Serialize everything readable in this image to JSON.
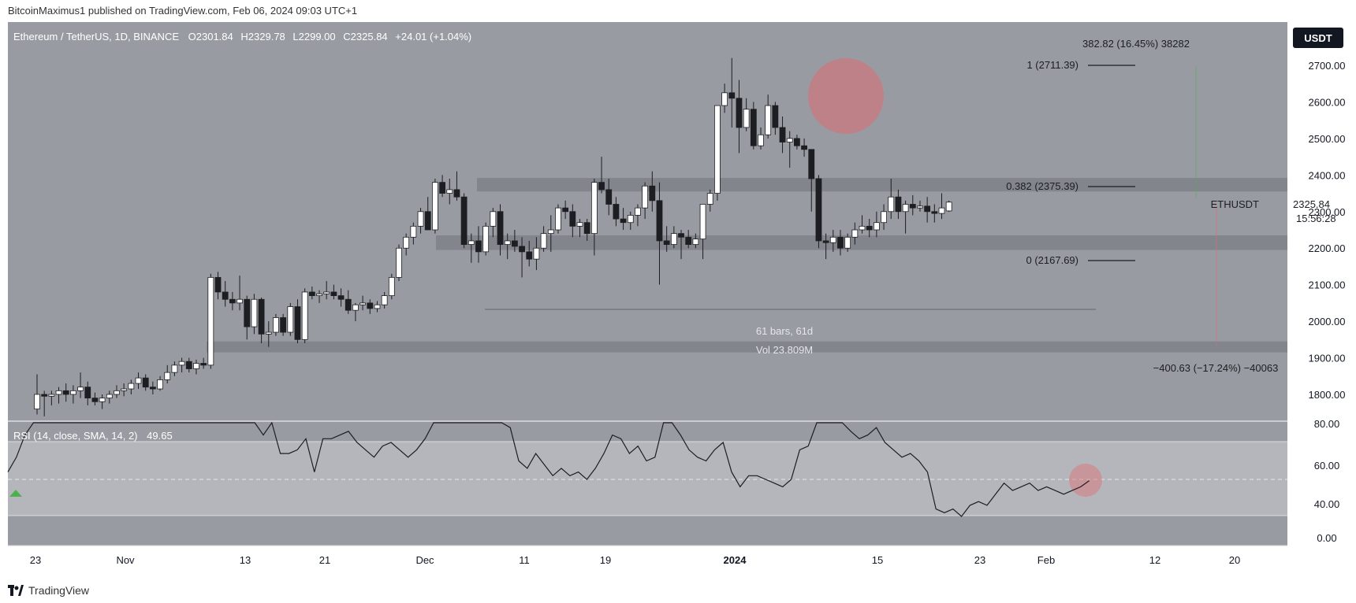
{
  "header": {
    "published": "BitcoinMaximus1 published on TradingView.com, Feb 06, 2024 09:03 UTC+1"
  },
  "footer": {
    "brand": "TradingView"
  },
  "symbol": {
    "title": "Ethereum / TetherUS, 1D, BINANCE",
    "o_label": "O",
    "o_value": "2301.84",
    "h_label": "H",
    "h_value": "2329.78",
    "l_label": "L",
    "l_value": "2299.00",
    "c_label": "C",
    "c_value": "2325.84",
    "change": "+24.01 (+1.04%)"
  },
  "price_axis": {
    "currency": "USDT",
    "tag_symbol": "ETHUSDT",
    "tag_price": "2325.84",
    "tag_countdown": "15:56:28"
  },
  "annotations": {
    "fib_1": "1 (2711.39)",
    "fib_0382": "0.382 (2375.39)",
    "fib_0": "0 (2167.69)",
    "measure_up": "382.82 (16.45%) 38282",
    "measure_down": "−400.63 (−17.24%) −40063",
    "bars_range": "61 bars, 61d",
    "vol_range": "Vol 23.809M"
  },
  "rsi": {
    "label": "RSI (14, close, SMA, 14, 2)",
    "value": "49.65"
  },
  "colors": {
    "pane_bg": "#989ba1",
    "rsi_band": "#b4b6bb",
    "zone": "#7b7e84",
    "candle_up": "#ffffff",
    "candle_down": "#1c1e22",
    "highlight": "#e06c75",
    "currency_badge": "#131722"
  },
  "chart_data": [
    {
      "type": "candlestick",
      "title": "Ethereum / TetherUS, 1D, BINANCE",
      "ylim": [
        1720,
        2820
      ],
      "y_ticks": [
        1800,
        1900,
        2000,
        2100,
        2200,
        2300,
        2400,
        2500,
        2600,
        2700
      ],
      "x_ticks": [
        "23",
        "Nov",
        "13",
        "21",
        "Dec",
        "11",
        "19",
        "2024",
        "15",
        "23",
        "Feb",
        "12",
        "20"
      ],
      "support_zones": [
        [
          2355,
          2392
        ],
        [
          2195,
          2235
        ],
        [
          1915,
          1945
        ]
      ],
      "fibonacci": [
        {
          "level": "1",
          "price": 2711.39
        },
        {
          "level": "0.382",
          "price": 2375.39
        },
        {
          "level": "0",
          "price": 2167.69
        }
      ],
      "series": [
        {
          "name": "ETHUSDT",
          "ohlc": [
            [
              1760,
              1855,
              1745,
              1800
            ],
            [
              1800,
              1810,
              1740,
              1795
            ],
            [
              1795,
              1810,
              1770,
              1800
            ],
            [
              1800,
              1820,
              1775,
              1810
            ],
            [
              1810,
              1830,
              1780,
              1800
            ],
            [
              1800,
              1825,
              1775,
              1810
            ],
            [
              1810,
              1860,
              1790,
              1820
            ],
            [
              1820,
              1835,
              1770,
              1790
            ],
            [
              1790,
              1805,
              1770,
              1780
            ],
            [
              1780,
              1800,
              1760,
              1790
            ],
            [
              1790,
              1810,
              1775,
              1800
            ],
            [
              1800,
              1825,
              1790,
              1810
            ],
            [
              1810,
              1830,
              1795,
              1815
            ],
            [
              1815,
              1840,
              1800,
              1830
            ],
            [
              1830,
              1860,
              1815,
              1845
            ],
            [
              1845,
              1855,
              1810,
              1820
            ],
            [
              1820,
              1835,
              1800,
              1815
            ],
            [
              1815,
              1850,
              1810,
              1840
            ],
            [
              1840,
              1880,
              1830,
              1860
            ],
            [
              1860,
              1890,
              1850,
              1880
            ],
            [
              1880,
              1900,
              1860,
              1890
            ],
            [
              1890,
              1900,
              1860,
              1870
            ],
            [
              1870,
              1895,
              1855,
              1885
            ],
            [
              1885,
              1900,
              1870,
              1880
            ],
            [
              1880,
              2130,
              1870,
              2120
            ],
            [
              2120,
              2135,
              2060,
              2080
            ],
            [
              2080,
              2110,
              2040,
              2060
            ],
            [
              2060,
              2080,
              2030,
              2050
            ],
            [
              2050,
              2125,
              2030,
              2060
            ],
            [
              2060,
              2070,
              1950,
              1985
            ],
            [
              1985,
              2075,
              1965,
              2060
            ],
            [
              2060,
              2065,
              1940,
              1965
            ],
            [
              1965,
              2000,
              1930,
              1970
            ],
            [
              1970,
              2020,
              1960,
              2010
            ],
            [
              2010,
              2020,
              1960,
              1970
            ],
            [
              1970,
              2050,
              1960,
              2040
            ],
            [
              2040,
              2060,
              1940,
              1950
            ],
            [
              1950,
              2090,
              1940,
              2080
            ],
            [
              2080,
              2095,
              2060,
              2070
            ],
            [
              2070,
              2085,
              2050,
              2075
            ],
            [
              2075,
              2110,
              2060,
              2080
            ],
            [
              2080,
              2100,
              2060,
              2070
            ],
            [
              2070,
              2090,
              2040,
              2060
            ],
            [
              2060,
              2085,
              2020,
              2030
            ],
            [
              2030,
              2050,
              2000,
              2045
            ],
            [
              2045,
              2070,
              2030,
              2050
            ],
            [
              2050,
              2060,
              2020,
              2035
            ],
            [
              2035,
              2055,
              2025,
              2045
            ],
            [
              2045,
              2080,
              2035,
              2070
            ],
            [
              2070,
              2130,
              2060,
              2120
            ],
            [
              2120,
              2210,
              2110,
              2200
            ],
            [
              2200,
              2240,
              2180,
              2230
            ],
            [
              2230,
              2270,
              2210,
              2260
            ],
            [
              2260,
              2310,
              2240,
              2300
            ],
            [
              2300,
              2340,
              2250,
              2250
            ],
            [
              2250,
              2390,
              2240,
              2380
            ],
            [
              2380,
              2400,
              2340,
              2350
            ],
            [
              2350,
              2390,
              2320,
              2360
            ],
            [
              2360,
              2410,
              2330,
              2340
            ],
            [
              2340,
              2350,
              2200,
              2210
            ],
            [
              2210,
              2240,
              2160,
              2220
            ],
            [
              2220,
              2260,
              2160,
              2190
            ],
            [
              2190,
              2270,
              2180,
              2260
            ],
            [
              2260,
              2310,
              2230,
              2300
            ],
            [
              2300,
              2320,
              2180,
              2210
            ],
            [
              2210,
              2240,
              2170,
              2220
            ],
            [
              2220,
              2250,
              2190,
              2205
            ],
            [
              2205,
              2230,
              2120,
              2190
            ],
            [
              2190,
              2220,
              2150,
              2170
            ],
            [
              2170,
              2230,
              2140,
              2200
            ],
            [
              2200,
              2260,
              2190,
              2240
            ],
            [
              2240,
              2290,
              2190,
              2250
            ],
            [
              2250,
              2320,
              2240,
              2310
            ],
            [
              2310,
              2330,
              2280,
              2300
            ],
            [
              2300,
              2320,
              2230,
              2260
            ],
            [
              2260,
              2280,
              2230,
              2270
            ],
            [
              2270,
              2280,
              2220,
              2240
            ],
            [
              2240,
              2390,
              2180,
              2380
            ],
            [
              2380,
              2450,
              2350,
              2360
            ],
            [
              2360,
              2390,
              2290,
              2320
            ],
            [
              2320,
              2340,
              2260,
              2280
            ],
            [
              2280,
              2310,
              2250,
              2270
            ],
            [
              2270,
              2300,
              2250,
              2290
            ],
            [
              2290,
              2320,
              2260,
              2310
            ],
            [
              2310,
              2380,
              2280,
              2370
            ],
            [
              2370,
              2410,
              2300,
              2330
            ],
            [
              2330,
              2380,
              2100,
              2220
            ],
            [
              2220,
              2260,
              2190,
              2210
            ],
            [
              2210,
              2260,
              2200,
              2240
            ],
            [
              2240,
              2250,
              2170,
              2230
            ],
            [
              2230,
              2250,
              2200,
              2210
            ],
            [
              2210,
              2240,
              2200,
              2225
            ],
            [
              2225,
              2310,
              2170,
              2320
            ],
            [
              2320,
              2360,
              2300,
              2350
            ],
            [
              2350,
              2580,
              2330,
              2590
            ],
            [
              2590,
              2650,
              2570,
              2625
            ],
            [
              2625,
              2720,
              2530,
              2610
            ],
            [
              2610,
              2660,
              2460,
              2530
            ],
            [
              2530,
              2610,
              2520,
              2580
            ],
            [
              2580,
              2600,
              2470,
              2480
            ],
            [
              2480,
              2530,
              2470,
              2510
            ],
            [
              2510,
              2620,
              2500,
              2590
            ],
            [
              2590,
              2600,
              2510,
              2530
            ],
            [
              2530,
              2560,
              2460,
              2490
            ],
            [
              2490,
              2520,
              2420,
              2500
            ],
            [
              2500,
              2510,
              2470,
              2480
            ],
            [
              2480,
              2500,
              2450,
              2470
            ],
            [
              2470,
              2470,
              2300,
              2390
            ],
            [
              2390,
              2400,
              2200,
              2220
            ],
            [
              2220,
              2240,
              2170,
              2215
            ],
            [
              2215,
              2250,
              2190,
              2230
            ],
            [
              2230,
              2250,
              2180,
              2200
            ],
            [
              2200,
              2240,
              2190,
              2230
            ],
            [
              2230,
              2270,
              2210,
              2250
            ],
            [
              2250,
              2290,
              2240,
              2260
            ],
            [
              2260,
              2280,
              2230,
              2250
            ],
            [
              2250,
              2300,
              2230,
              2270
            ],
            [
              2270,
              2320,
              2250,
              2300
            ],
            [
              2300,
              2390,
              2280,
              2340
            ],
            [
              2340,
              2360,
              2280,
              2300
            ],
            [
              2300,
              2330,
              2240,
              2320
            ],
            [
              2320,
              2345,
              2290,
              2310
            ],
            [
              2310,
              2330,
              2300,
              2315
            ],
            [
              2315,
              2340,
              2270,
              2300
            ],
            [
              2300,
              2320,
              2270,
              2295
            ],
            [
              2295,
              2350,
              2280,
              2310
            ],
            [
              2301.84,
              2329.78,
              2299.0,
              2325.84
            ]
          ]
        }
      ]
    },
    {
      "type": "line",
      "title": "RSI (14, close, SMA, 14, 2)",
      "ylim": [
        0,
        100
      ],
      "y_ticks": [
        0,
        40,
        60,
        80
      ],
      "band": [
        40,
        70
      ],
      "midline": 50,
      "series": [
        {
          "name": "RSI",
          "values": [
            52,
            56,
            62,
            72,
            71,
            70,
            72,
            72,
            70,
            71,
            70,
            72,
            73,
            72,
            73,
            67,
            69,
            70,
            71,
            72,
            72,
            72,
            72,
            72,
            93,
            82,
            76,
            74,
            73,
            74,
            62,
            68,
            57,
            57,
            58,
            61,
            52,
            61,
            61,
            62,
            63,
            60,
            58,
            56,
            59,
            60,
            58,
            56,
            58,
            61,
            67,
            69,
            70,
            72,
            67,
            71,
            70,
            72,
            71,
            64,
            55,
            53,
            57,
            54,
            51,
            53,
            51,
            52,
            50,
            53,
            57,
            62,
            61,
            57,
            59,
            55,
            56,
            70,
            68,
            62,
            58,
            56,
            55,
            58,
            60,
            52,
            48,
            51,
            51,
            50,
            49,
            48,
            50,
            58,
            59,
            71,
            72,
            68,
            69,
            63,
            61,
            62,
            64,
            60,
            58,
            56,
            57,
            55,
            52,
            42,
            41,
            42,
            40,
            43,
            44,
            43,
            46,
            49,
            47,
            48,
            49,
            47,
            48,
            47,
            46,
            47,
            48,
            49.65
          ]
        }
      ]
    }
  ]
}
